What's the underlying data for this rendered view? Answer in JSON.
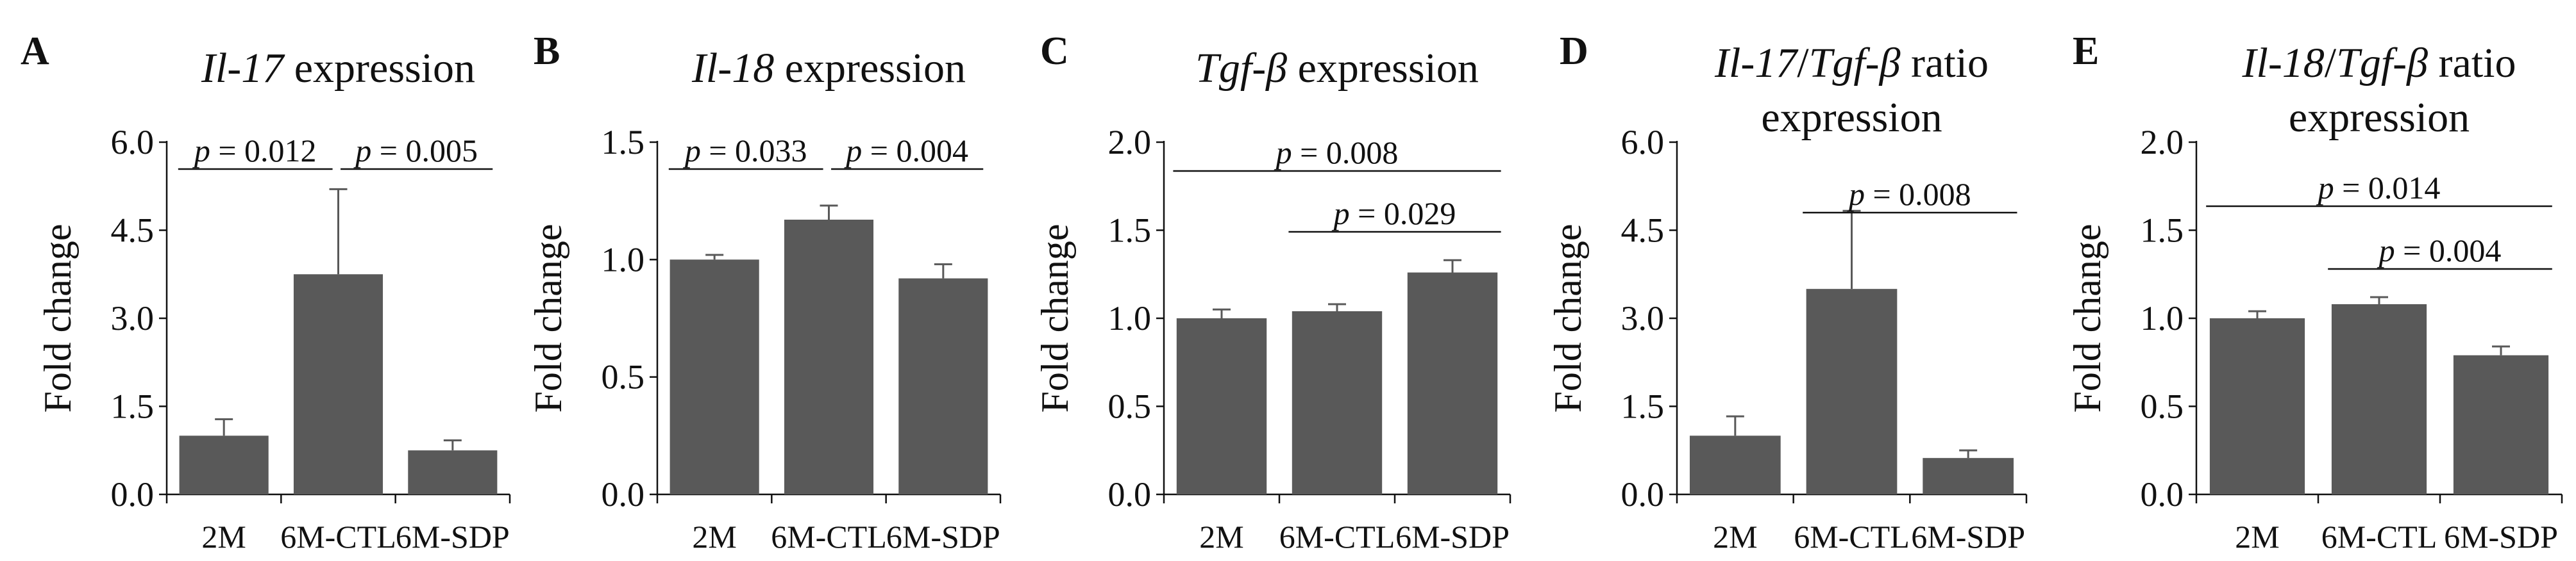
{
  "figure": {
    "series_color": "#595959",
    "axis_color": "#111111"
  },
  "chart_data": [
    {
      "type": "bar",
      "panel": "A",
      "title_parts": [
        {
          "text": "Il-17",
          "italic": true
        },
        {
          "text": " expression",
          "italic": false
        }
      ],
      "ylabel": "Fold change",
      "ylim": [
        0,
        6.0
      ],
      "yticks": [
        "0.0",
        "1.5",
        "3.0",
        "4.5",
        "6.0"
      ],
      "categories": [
        "2M",
        "6M-CTL",
        "6M-SDP"
      ],
      "values": [
        1.0,
        3.75,
        0.75
      ],
      "errors": [
        0.28,
        1.45,
        0.17
      ],
      "comparisons": [
        {
          "from": 0,
          "to": 1,
          "label": "= 0.012"
        },
        {
          "from": 1,
          "to": 2,
          "label": "= 0.005"
        }
      ]
    },
    {
      "type": "bar",
      "panel": "B",
      "title_parts": [
        {
          "text": "Il-18",
          "italic": true
        },
        {
          "text": " expression",
          "italic": false
        }
      ],
      "ylabel": "Fold change",
      "ylim": [
        0,
        1.5
      ],
      "yticks": [
        "0.0",
        "0.5",
        "1.0",
        "1.5"
      ],
      "categories": [
        "2M",
        "6M-CTL",
        "6M-SDP"
      ],
      "values": [
        1.0,
        1.17,
        0.92
      ],
      "errors": [
        0.02,
        0.06,
        0.06
      ],
      "comparisons": [
        {
          "from": 0,
          "to": 1,
          "label": "= 0.033"
        },
        {
          "from": 1,
          "to": 2,
          "label": "= 0.004"
        }
      ]
    },
    {
      "type": "bar",
      "panel": "C",
      "title_parts": [
        {
          "text": "Tgf-β",
          "italic": true
        },
        {
          "text": " expression",
          "italic": false
        }
      ],
      "ylabel": "Fold change",
      "ylim": [
        0,
        2.0
      ],
      "yticks": [
        "0.0",
        "0.5",
        "1.0",
        "1.5",
        "2.0"
      ],
      "categories": [
        "2M",
        "6M-CTL",
        "6M-SDP"
      ],
      "values": [
        1.0,
        1.04,
        1.26
      ],
      "errors": [
        0.05,
        0.04,
        0.07
      ],
      "comparisons": [
        {
          "from": 0,
          "to": 2,
          "label": "= 0.008"
        },
        {
          "from": 1,
          "to": 2,
          "label": "= 0.029"
        }
      ]
    },
    {
      "type": "bar",
      "panel": "D",
      "title_parts": [
        {
          "text": "Il-17",
          "italic": true
        },
        {
          "text": "/",
          "italic": false
        },
        {
          "text": "Tgf-β",
          "italic": true
        },
        {
          "text": " ratio",
          "italic": false
        }
      ],
      "title_line2": "expression",
      "ylabel": "Fold change",
      "ylim": [
        0,
        6.0
      ],
      "yticks": [
        "0.0",
        "1.5",
        "3.0",
        "4.5",
        "6.0"
      ],
      "categories": [
        "2M",
        "6M-CTL",
        "6M-SDP"
      ],
      "values": [
        1.0,
        3.5,
        0.62
      ],
      "errors": [
        0.33,
        1.33,
        0.13
      ],
      "comparisons": [
        {
          "from": 1,
          "to": 2,
          "label": "= 0.008"
        }
      ]
    },
    {
      "type": "bar",
      "panel": "E",
      "title_parts": [
        {
          "text": "Il-18",
          "italic": true
        },
        {
          "text": "/",
          "italic": false
        },
        {
          "text": "Tgf-β",
          "italic": true
        },
        {
          "text": " ratio",
          "italic": false
        }
      ],
      "title_line2": "expression",
      "ylabel": "Fold change",
      "ylim": [
        0,
        2.0
      ],
      "yticks": [
        "0.0",
        "0.5",
        "1.0",
        "1.5",
        "2.0"
      ],
      "categories": [
        "2M",
        "6M-CTL",
        "6M-SDP"
      ],
      "values": [
        1.0,
        1.08,
        0.79
      ],
      "errors": [
        0.04,
        0.04,
        0.05
      ],
      "comparisons": [
        {
          "from": 0,
          "to": 2,
          "label": "= 0.014"
        },
        {
          "from": 1,
          "to": 2,
          "label": "= 0.004"
        }
      ]
    }
  ]
}
